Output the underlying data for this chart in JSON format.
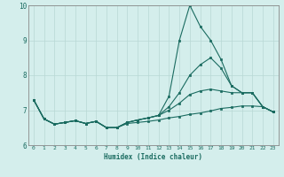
{
  "xlabel": "Humidex (Indice chaleur)",
  "bg_color": "#d4eeec",
  "grid_color": "#b8d8d4",
  "line_color": "#1a6b60",
  "xmin": 0,
  "xmax": 23,
  "ymin": 6,
  "ymax": 10,
  "series": [
    {
      "x": [
        0,
        1,
        2,
        3,
        4,
        5,
        6,
        7,
        8,
        9,
        10,
        11,
        12,
        13,
        14,
        15,
        16,
        17,
        18,
        19,
        20,
        21,
        22,
        23
      ],
      "y": [
        7.3,
        6.75,
        6.6,
        6.65,
        6.7,
        6.62,
        6.68,
        6.5,
        6.5,
        6.65,
        6.72,
        6.78,
        6.85,
        7.4,
        9.0,
        10.0,
        9.4,
        9.0,
        8.45,
        7.7,
        7.5,
        7.5,
        7.1,
        6.95
      ]
    },
    {
      "x": [
        0,
        1,
        2,
        3,
        4,
        5,
        6,
        7,
        8,
        9,
        10,
        11,
        12,
        13,
        14,
        15,
        16,
        17,
        18,
        19,
        20,
        21,
        22,
        23
      ],
      "y": [
        7.3,
        6.75,
        6.6,
        6.65,
        6.7,
        6.62,
        6.68,
        6.5,
        6.5,
        6.65,
        6.72,
        6.78,
        6.85,
        7.1,
        7.5,
        8.0,
        8.3,
        8.5,
        8.2,
        7.7,
        7.5,
        7.5,
        7.1,
        6.95
      ]
    },
    {
      "x": [
        0,
        1,
        2,
        3,
        4,
        5,
        6,
        7,
        8,
        9,
        10,
        11,
        12,
        13,
        14,
        15,
        16,
        17,
        18,
        19,
        20,
        21,
        22,
        23
      ],
      "y": [
        7.3,
        6.75,
        6.6,
        6.65,
        6.7,
        6.62,
        6.68,
        6.5,
        6.5,
        6.65,
        6.72,
        6.78,
        6.85,
        7.0,
        7.2,
        7.45,
        7.55,
        7.6,
        7.55,
        7.5,
        7.5,
        7.5,
        7.1,
        6.95
      ]
    },
    {
      "x": [
        0,
        1,
        2,
        3,
        4,
        5,
        6,
        7,
        8,
        9,
        10,
        11,
        12,
        13,
        14,
        15,
        16,
        17,
        18,
        19,
        20,
        21,
        22,
        23
      ],
      "y": [
        7.3,
        6.75,
        6.6,
        6.65,
        6.7,
        6.62,
        6.68,
        6.5,
        6.5,
        6.62,
        6.65,
        6.68,
        6.72,
        6.78,
        6.82,
        6.88,
        6.92,
        6.98,
        7.05,
        7.08,
        7.12,
        7.12,
        7.1,
        6.95
      ]
    }
  ],
  "figsize": [
    3.2,
    2.0
  ],
  "dpi": 100
}
